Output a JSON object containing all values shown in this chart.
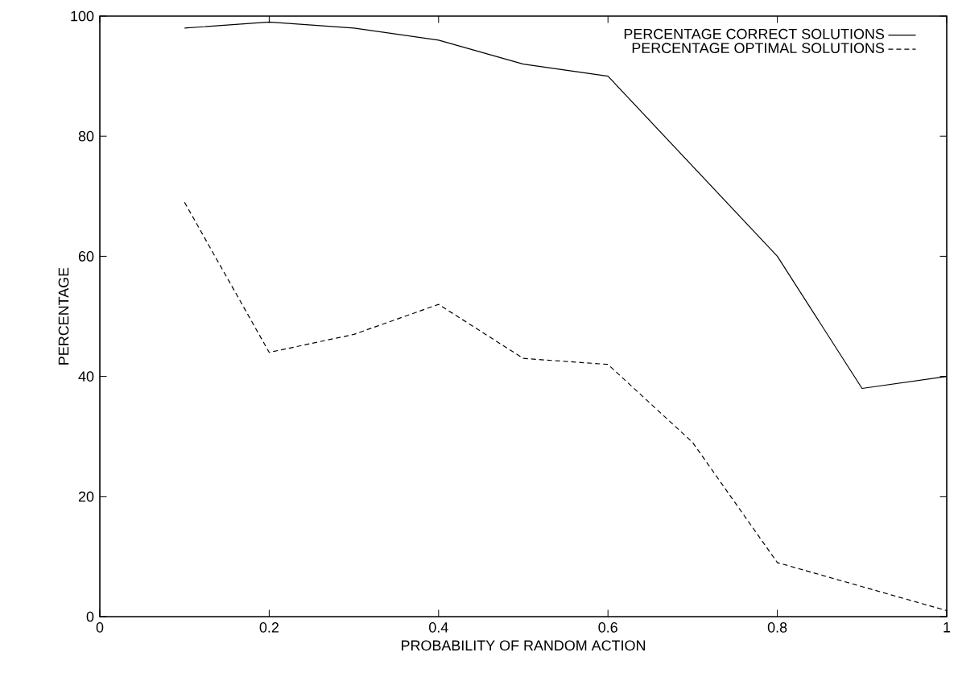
{
  "chart_data": {
    "type": "line",
    "xlabel": "PROBABILITY OF RANDOM ACTION",
    "ylabel": "PERCENTAGE",
    "x": [
      0.1,
      0.2,
      0.3,
      0.4,
      0.5,
      0.6,
      0.7,
      0.8,
      0.9,
      1.0
    ],
    "series": [
      {
        "name": "PERCENTAGE CORRECT SOLUTIONS",
        "color": "#000000",
        "line_style": "solid",
        "values": [
          98,
          99,
          98,
          96,
          92,
          90,
          75,
          60,
          38,
          40
        ]
      },
      {
        "name": "PERCENTAGE OPTIMAL SOLUTIONS",
        "color": "#000000",
        "line_style": "dashed",
        "values": [
          69,
          44,
          47,
          52,
          43,
          42,
          29,
          9,
          5,
          1
        ]
      }
    ],
    "xlim": [
      0,
      1
    ],
    "ylim": [
      0,
      100
    ],
    "xticks": [
      0,
      0.2,
      0.4,
      0.6,
      0.8,
      1
    ],
    "yticks": [
      0,
      20,
      40,
      60,
      80,
      100
    ],
    "grid": false,
    "legend": "top right",
    "marker": "none"
  }
}
